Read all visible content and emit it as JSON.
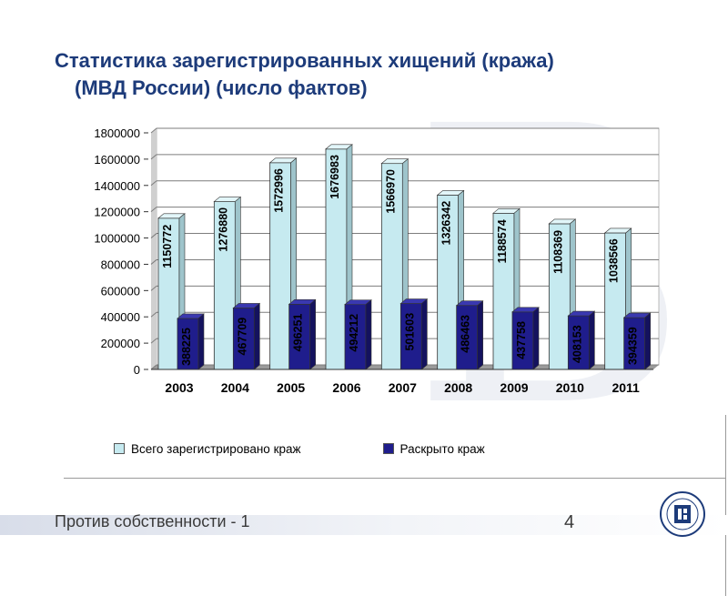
{
  "slide": {
    "title_line1": "Статистика зарегистрированных хищений (кража)",
    "title_line2": "(МВД России) (число фактов)",
    "footer_text": "Против собственности - 1",
    "page_number": "4"
  },
  "colors": {
    "title": "#1d3b7a",
    "series_total": "#c6eaf0",
    "series_solved": "#1f1d8c",
    "footer_band": "#d8dde9"
  },
  "logo": {
    "icon": "university-seal-icon"
  },
  "chart_data": {
    "type": "bar",
    "categories": [
      "2003",
      "2004",
      "2005",
      "2006",
      "2007",
      "2008",
      "2009",
      "2010",
      "2011"
    ],
    "series": [
      {
        "name": "Всего зарегистрировано краж",
        "values": [
          1150772,
          1276880,
          1572996,
          1676983,
          1566970,
          1326342,
          1188574,
          1108369,
          1038566
        ],
        "color": "#c6eaf0"
      },
      {
        "name": "Раскрыто краж",
        "values": [
          388225,
          467709,
          496251,
          494212,
          501603,
          486463,
          437758,
          408153,
          394359
        ],
        "color": "#1f1d8c"
      }
    ],
    "yticks": [
      "0",
      "200000",
      "400000",
      "600000",
      "800000",
      "1000000",
      "1200000",
      "1400000",
      "1600000",
      "1800000"
    ],
    "ylim": [
      0,
      1800000
    ],
    "grid": "major y",
    "legend": "bottom",
    "style": "3d clustered column"
  }
}
